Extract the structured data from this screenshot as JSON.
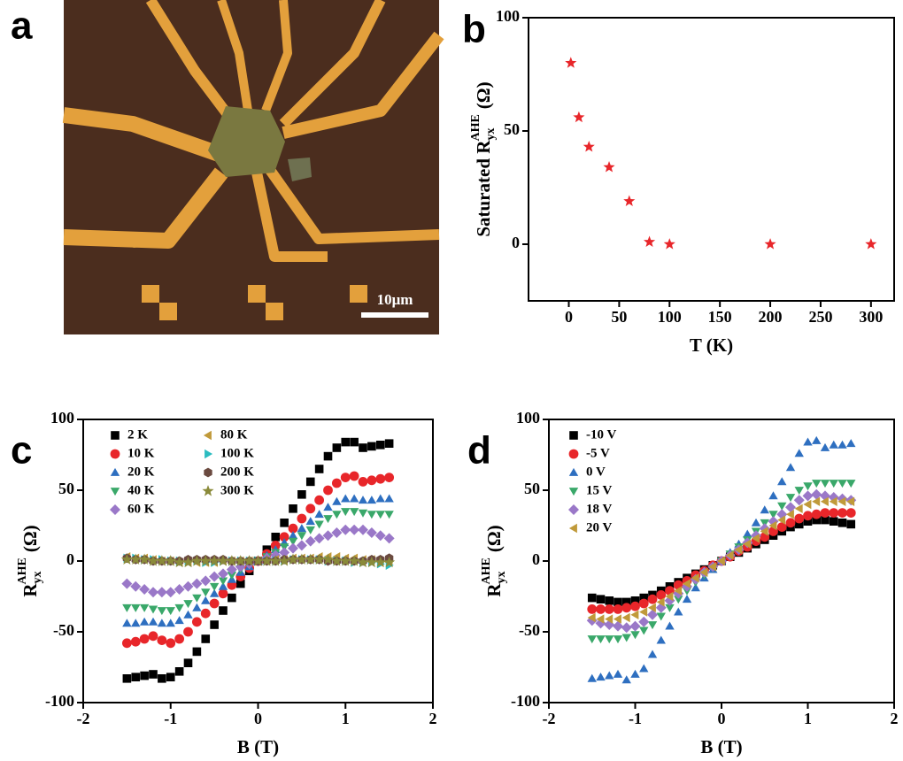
{
  "panel_a": {
    "label": "a",
    "scale_bar": "10μm"
  },
  "chart_data": [
    {
      "type": "scatter",
      "label": "b",
      "xlabel": "T (K)",
      "ylabel": {
        "text": "Saturated R",
        "sub": "yx",
        "sup": "AHE",
        "unit": "(Ω)"
      },
      "x": [
        2,
        10,
        20,
        40,
        60,
        80,
        100,
        200,
        300
      ],
      "series": [
        {
          "color": "#e8262a",
          "marker": "star",
          "values": [
            80,
            56,
            43,
            34,
            19,
            1,
            0,
            0,
            0
          ]
        }
      ],
      "xlim": [
        -40,
        323
      ],
      "xticks": [
        0,
        50,
        100,
        150,
        200,
        250,
        300
      ],
      "ylim": [
        -25,
        100
      ],
      "yticks": [
        0,
        50,
        100
      ]
    },
    {
      "type": "scatter",
      "label": "c",
      "xlabel": "B (T)",
      "ylabel": {
        "text": "R",
        "sub": "yx",
        "sup": "AHE",
        "unit": "(Ω)"
      },
      "legend_columns": 2,
      "x": [
        -1.5,
        -1.4,
        -1.3,
        -1.2,
        -1.1,
        -1,
        -0.9,
        -0.8,
        -0.7,
        -0.6,
        -0.5,
        -0.4,
        -0.3,
        -0.2,
        -0.1,
        0,
        0.1,
        0.2,
        0.3,
        0.4,
        0.5,
        0.6,
        0.7,
        0.8,
        0.9,
        1,
        1.1,
        1.2,
        1.3,
        1.4,
        1.5
      ],
      "series": [
        {
          "name": "2 K",
          "color": "#000000",
          "marker": "square",
          "values": [
            -83,
            -82,
            -81,
            -80,
            -83,
            -82,
            -78,
            -72,
            -64,
            -55,
            -45,
            -35,
            -26,
            -16,
            -7,
            0,
            8,
            17,
            27,
            37,
            47,
            56,
            65,
            74,
            80,
            84,
            84,
            80,
            81,
            82,
            83
          ]
        },
        {
          "name": "10 K",
          "color": "#e8262a",
          "marker": "circle",
          "values": [
            -58,
            -57,
            -55,
            -53,
            -56,
            -58,
            -55,
            -50,
            -43,
            -37,
            -30,
            -23,
            -17,
            -11,
            -5,
            0,
            5,
            11,
            17,
            23,
            30,
            37,
            43,
            50,
            55,
            59,
            60,
            56,
            57,
            58,
            59
          ]
        },
        {
          "name": "20 K",
          "color": "#2e6fc0",
          "marker": "triangle-up",
          "values": [
            -44,
            -44,
            -43,
            -43,
            -44,
            -44,
            -42,
            -38,
            -33,
            -28,
            -23,
            -18,
            -13,
            -8,
            -4,
            0,
            4,
            8,
            13,
            18,
            23,
            28,
            33,
            38,
            42,
            44,
            44,
            43,
            43,
            44,
            44
          ]
        },
        {
          "name": "40 K",
          "color": "#3aa86a",
          "marker": "triangle-down",
          "values": [
            -33,
            -33,
            -33,
            -34,
            -35,
            -35,
            -33,
            -30,
            -26,
            -22,
            -18,
            -14,
            -10,
            -6,
            -3,
            0,
            3,
            6,
            10,
            14,
            18,
            22,
            26,
            30,
            33,
            35,
            35,
            34,
            33,
            33,
            33
          ]
        },
        {
          "name": "60 K",
          "color": "#9a78c8",
          "marker": "diamond",
          "values": [
            -16,
            -18,
            -20,
            -22,
            -22,
            -22,
            -20,
            -18,
            -16,
            -14,
            -11,
            -9,
            -6,
            -4,
            -2,
            0,
            2,
            4,
            6,
            9,
            11,
            14,
            16,
            18,
            20,
            22,
            22,
            22,
            20,
            18,
            16
          ]
        },
        {
          "name": "80 K",
          "color": "#c09a3a",
          "marker": "triangle-left",
          "values": [
            3,
            2,
            2,
            1,
            0,
            0,
            -1,
            -1,
            -1,
            -1,
            -1,
            0,
            0,
            0,
            0,
            0,
            0,
            1,
            1,
            2,
            2,
            2,
            3,
            3,
            3,
            2,
            2,
            1,
            1,
            0,
            -1
          ]
        },
        {
          "name": "100 K",
          "color": "#2bbcc0",
          "marker": "triangle-right",
          "values": [
            2,
            2,
            1,
            1,
            1,
            0,
            0,
            0,
            0,
            -1,
            -1,
            0,
            0,
            0,
            0,
            0,
            0,
            0,
            0,
            1,
            1,
            1,
            1,
            0,
            0,
            0,
            -1,
            -1,
            -1,
            -2,
            -3
          ]
        },
        {
          "name": "200 K",
          "color": "#6b4a40",
          "marker": "hexagon",
          "values": [
            2,
            1,
            1,
            0,
            0,
            0,
            0,
            1,
            1,
            1,
            1,
            1,
            0,
            0,
            0,
            0,
            0,
            0,
            1,
            1,
            1,
            1,
            1,
            0,
            0,
            0,
            0,
            0,
            1,
            1,
            2
          ]
        },
        {
          "name": "300 K",
          "color": "#8a8a3a",
          "marker": "star",
          "values": [
            1,
            1,
            1,
            0,
            0,
            0,
            -1,
            -1,
            0,
            0,
            0,
            0,
            0,
            0,
            0,
            0,
            0,
            0,
            0,
            1,
            1,
            1,
            1,
            1,
            0,
            0,
            0,
            -1,
            -1,
            -1,
            -1
          ]
        }
      ],
      "xlim": [
        -2,
        2
      ],
      "xticks": [
        -2,
        -1,
        0,
        1,
        2
      ],
      "ylim": [
        -100,
        100
      ],
      "yticks": [
        -100,
        -50,
        0,
        50,
        100
      ]
    },
    {
      "type": "scatter",
      "label": "d",
      "xlabel": "B (T)",
      "ylabel": {
        "text": "R",
        "sub": "yx",
        "sup": "AHE",
        "unit": "(Ω)"
      },
      "legend_columns": 1,
      "x": [
        -1.5,
        -1.4,
        -1.3,
        -1.2,
        -1.1,
        -1,
        -0.9,
        -0.8,
        -0.7,
        -0.6,
        -0.5,
        -0.4,
        -0.3,
        -0.2,
        -0.1,
        0,
        0.1,
        0.2,
        0.3,
        0.4,
        0.5,
        0.6,
        0.7,
        0.8,
        0.9,
        1,
        1.1,
        1.2,
        1.3,
        1.4,
        1.5
      ],
      "series": [
        {
          "name": "-10 V",
          "color": "#000000",
          "marker": "square",
          "values": [
            -26,
            -27,
            -28,
            -29,
            -29,
            -28,
            -26,
            -24,
            -21,
            -18,
            -15,
            -12,
            -9,
            -6,
            -3,
            0,
            3,
            6,
            9,
            12,
            15,
            18,
            21,
            24,
            26,
            28,
            29,
            29,
            28,
            27,
            26
          ]
        },
        {
          "name": "-5 V",
          "color": "#e8262a",
          "marker": "circle",
          "values": [
            -34,
            -34,
            -34,
            -34,
            -33,
            -32,
            -30,
            -27,
            -24,
            -21,
            -17,
            -14,
            -10,
            -7,
            -3,
            0,
            3,
            7,
            10,
            14,
            17,
            21,
            24,
            27,
            30,
            32,
            33,
            34,
            34,
            34,
            34
          ]
        },
        {
          "name": "0 V",
          "color": "#2e6fc0",
          "marker": "triangle-up",
          "values": [
            -83,
            -82,
            -81,
            -80,
            -84,
            -80,
            -76,
            -66,
            -56,
            -46,
            -36,
            -27,
            -19,
            -12,
            -6,
            0,
            6,
            12,
            19,
            27,
            36,
            46,
            56,
            66,
            76,
            84,
            85,
            80,
            82,
            82,
            83
          ]
        },
        {
          "name": "15 V",
          "color": "#3aa86a",
          "marker": "triangle-down",
          "values": [
            -55,
            -55,
            -55,
            -55,
            -54,
            -52,
            -49,
            -45,
            -39,
            -33,
            -27,
            -21,
            -15,
            -10,
            -5,
            0,
            5,
            10,
            15,
            21,
            27,
            33,
            39,
            45,
            50,
            53,
            55,
            55,
            55,
            55,
            55
          ]
        },
        {
          "name": "18 V",
          "color": "#9a78c8",
          "marker": "diamond",
          "values": [
            -42,
            -44,
            -45,
            -46,
            -47,
            -46,
            -43,
            -38,
            -33,
            -28,
            -23,
            -18,
            -13,
            -8,
            -4,
            0,
            4,
            8,
            13,
            18,
            23,
            28,
            33,
            38,
            43,
            46,
            47,
            46,
            45,
            44,
            43
          ]
        },
        {
          "name": "20 V",
          "color": "#c09a3a",
          "marker": "triangle-left",
          "values": [
            -40,
            -41,
            -41,
            -41,
            -40,
            -38,
            -36,
            -33,
            -29,
            -25,
            -21,
            -16,
            -12,
            -8,
            -4,
            0,
            4,
            8,
            12,
            16,
            21,
            25,
            29,
            33,
            37,
            40,
            42,
            42,
            42,
            42,
            42
          ]
        }
      ],
      "xlim": [
        -2,
        2
      ],
      "xticks": [
        -2,
        -1,
        0,
        1,
        2
      ],
      "ylim": [
        -100,
        100
      ],
      "yticks": [
        -100,
        -50,
        0,
        50,
        100
      ]
    }
  ]
}
